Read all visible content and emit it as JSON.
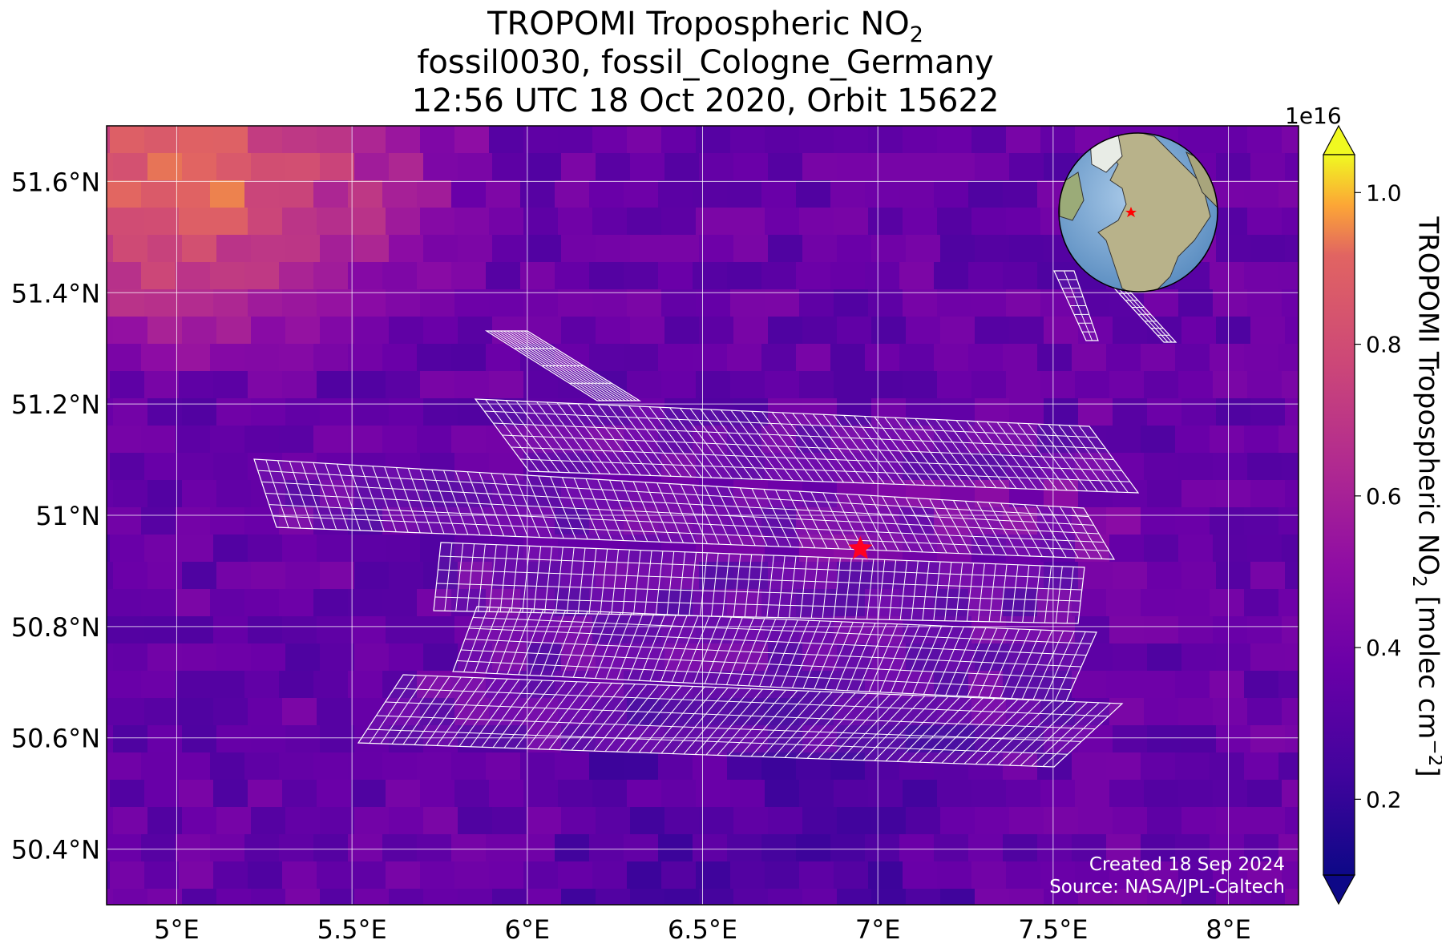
{
  "title": {
    "line1_main": "TROPOMI Tropospheric NO",
    "line1_sub": "2",
    "line2": "fossil0030, fossil_Cologne_Germany",
    "line3": "12:56 UTC 18 Oct 2020, Orbit 15622"
  },
  "map": {
    "projection": "lat-lon",
    "lon_range": [
      4.8,
      8.2
    ],
    "lat_range": [
      50.3,
      51.7
    ],
    "x_ticks": [
      {
        "value": 5.0,
        "label": "5°E"
      },
      {
        "value": 5.5,
        "label": "5.5°E"
      },
      {
        "value": 6.0,
        "label": "6°E"
      },
      {
        "value": 6.5,
        "label": "6.5°E"
      },
      {
        "value": 7.0,
        "label": "7°E"
      },
      {
        "value": 7.5,
        "label": "7.5°E"
      },
      {
        "value": 8.0,
        "label": "8°E"
      }
    ],
    "y_ticks": [
      {
        "value": 50.4,
        "label": "50.4°N"
      },
      {
        "value": 50.6,
        "label": "50.6°N"
      },
      {
        "value": 50.8,
        "label": "50.8°N"
      },
      {
        "value": 51.0,
        "label": "51°N"
      },
      {
        "value": 51.2,
        "label": "51.2°N"
      },
      {
        "value": 51.4,
        "label": "51.4°N"
      },
      {
        "value": 51.6,
        "label": "51.6°N"
      }
    ],
    "gridlines": true,
    "target_marker": {
      "lon": 6.95,
      "lat": 50.94,
      "symbol": "star",
      "color": "#ff0022"
    },
    "credit_line1": "Created 18 Sep 2024",
    "credit_line2": "Source: NASA/JPL-Caltech",
    "inset_globe": {
      "position": "top-right",
      "marker": "star",
      "marker_color": "#ff0000"
    }
  },
  "colorbar": {
    "colormap": "plasma",
    "range": [
      0.1,
      1.05
    ],
    "exponent_label": "1e16",
    "ticks": [
      {
        "value": 0.2,
        "label": "0.2"
      },
      {
        "value": 0.4,
        "label": "0.4"
      },
      {
        "value": 0.6,
        "label": "0.6"
      },
      {
        "value": 0.8,
        "label": "0.8"
      },
      {
        "value": 1.0,
        "label": "1.0"
      }
    ],
    "label_main": "TROPOMI Tropospheric NO",
    "label_sub": "2",
    "label_units": " [molec cm",
    "label_sup": "−2",
    "label_end": "]",
    "extend": "both"
  },
  "colors": {
    "grid": "#ffffff",
    "grid_overlay": "#ffffff",
    "frame": "#000000"
  }
}
